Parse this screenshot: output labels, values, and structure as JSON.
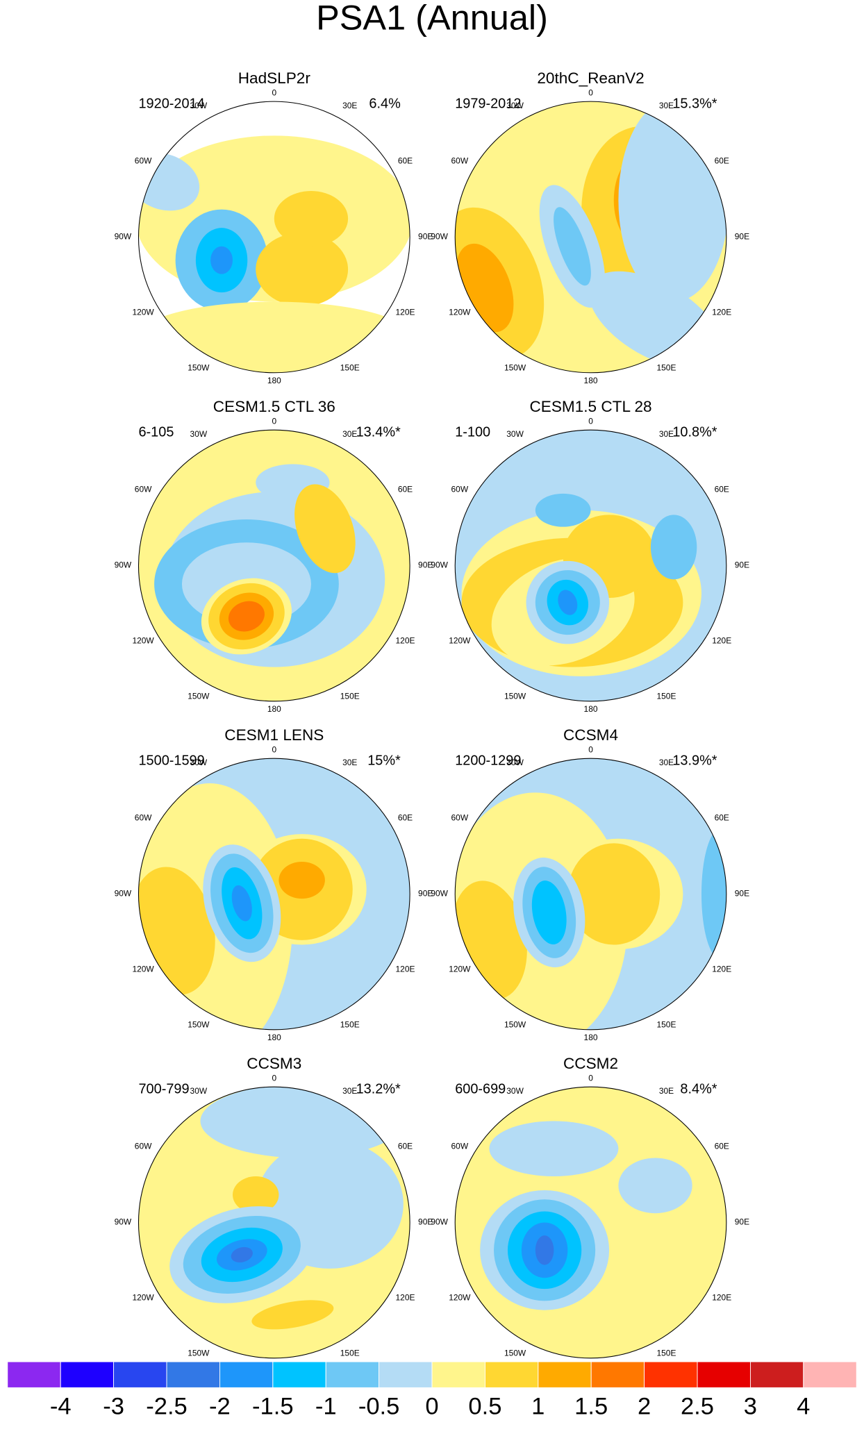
{
  "title": "PSA1 (Annual)",
  "lon_labels": [
    "0",
    "30E",
    "60E",
    "90E",
    "120E",
    "150E",
    "180",
    "150W",
    "120W",
    "90W",
    "60W",
    "30W"
  ],
  "panels": [
    {
      "title": "HadSLP2r",
      "period": "1920-2014",
      "variance": "6.4%"
    },
    {
      "title": "20thC_ReanV2",
      "period": "1979-2012",
      "variance": "15.3%*"
    },
    {
      "title": "CESM1.5 CTL 36",
      "period": "6-105",
      "variance": "13.4%*"
    },
    {
      "title": "CESM1.5 CTL 28",
      "period": "1-100",
      "variance": "10.8%*"
    },
    {
      "title": "CESM1 LENS",
      "period": "1500-1599",
      "variance": "15%*"
    },
    {
      "title": "CCSM4",
      "period": "1200-1299",
      "variance": "13.9%*"
    },
    {
      "title": "CCSM3",
      "period": "700-799",
      "variance": "13.2%*"
    },
    {
      "title": "CCSM2",
      "period": "600-699",
      "variance": "8.4%*"
    }
  ],
  "colorbar": {
    "colors": [
      "#8c28f0",
      "#1e00ff",
      "#2846f0",
      "#3278e6",
      "#1e96fa",
      "#00c3ff",
      "#6ec8f5",
      "#b4dcf5",
      "#fff58c",
      "#ffd732",
      "#ffaa00",
      "#ff7800",
      "#ff3200",
      "#e60000",
      "#cd1e1e",
      "#ffb4b4"
    ],
    "ticks": [
      -4,
      -3,
      -2.5,
      -2,
      -1.5,
      -1,
      -0.5,
      0,
      0.5,
      1,
      1.5,
      2,
      2.5,
      3,
      4
    ]
  }
}
